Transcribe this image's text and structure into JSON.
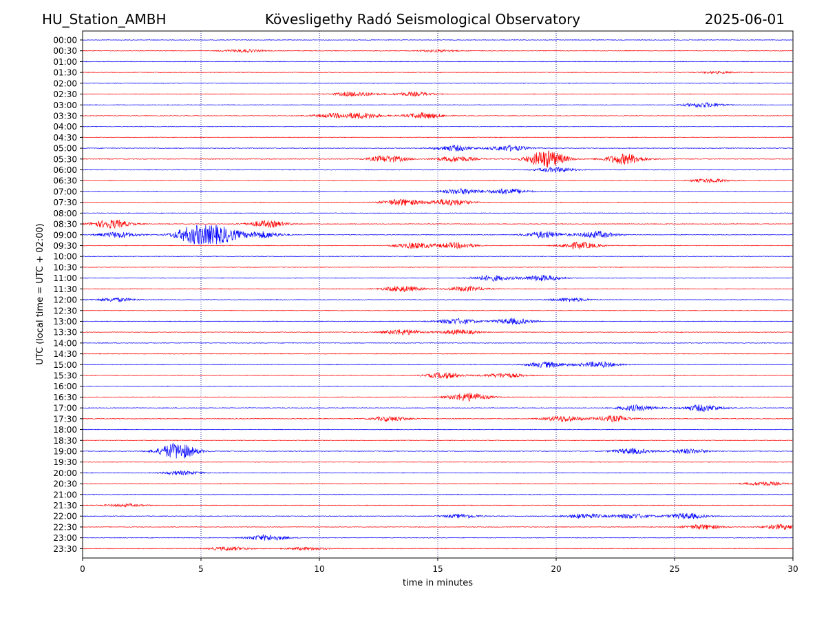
{
  "header": {
    "station": "HU_Station_AMBH",
    "observatory": "Kövesligethy Radó Seismological Observatory",
    "date": "2025-06-01"
  },
  "colors": {
    "trace_on_hour": "#0000ff",
    "trace_half_hour": "#ff0000",
    "grid": "#000080",
    "axis": "#000000",
    "background": "#ffffff"
  },
  "chart_data": {
    "type": "line",
    "title": "Kövesligethy Radó Seismological Observatory",
    "xlabel": "time in minutes",
    "ylabel": "UTC (local time = UTC + 02:00)",
    "xlim": [
      0,
      30
    ],
    "x_ticks": [
      0,
      5,
      10,
      15,
      20,
      25,
      30
    ],
    "x_tick_labels": [
      "0",
      "5",
      "10",
      "15",
      "20",
      "25",
      "30"
    ],
    "x_grid": "dotted vertical lines every 5 minutes",
    "row_labels": [
      "00:00",
      "00:30",
      "01:00",
      "01:30",
      "02:00",
      "02:30",
      "03:00",
      "03:30",
      "04:00",
      "04:30",
      "05:00",
      "05:30",
      "06:00",
      "06:30",
      "07:00",
      "07:30",
      "08:00",
      "08:30",
      "09:00",
      "09:30",
      "10:00",
      "10:30",
      "11:00",
      "11:30",
      "12:00",
      "12:30",
      "13:00",
      "13:30",
      "14:00",
      "14:30",
      "15:00",
      "15:30",
      "16:00",
      "16:30",
      "17:00",
      "17:30",
      "18:00",
      "18:30",
      "19:00",
      "19:30",
      "20:00",
      "20:30",
      "21:00",
      "21:30",
      "22:00",
      "22:30",
      "23:00",
      "23:30"
    ],
    "row_colors": "alternating: on-hour rows blue, half-hour rows red",
    "events": [
      {
        "row": "00:30",
        "minute": 6.8,
        "amp": 0.15
      },
      {
        "row": "00:30",
        "minute": 15.0,
        "amp": 0.12
      },
      {
        "row": "01:30",
        "minute": 26.8,
        "amp": 0.1
      },
      {
        "row": "02:30",
        "minute": 11.5,
        "amp": 0.25
      },
      {
        "row": "02:30",
        "minute": 14.0,
        "amp": 0.2
      },
      {
        "row": "03:00",
        "minute": 26.2,
        "amp": 0.25
      },
      {
        "row": "03:30",
        "minute": 10.5,
        "amp": 0.2
      },
      {
        "row": "03:30",
        "minute": 11.8,
        "amp": 0.3
      },
      {
        "row": "03:30",
        "minute": 14.4,
        "amp": 0.3
      },
      {
        "row": "05:00",
        "minute": 15.7,
        "amp": 0.3
      },
      {
        "row": "05:00",
        "minute": 18.0,
        "amp": 0.3
      },
      {
        "row": "05:30",
        "minute": 12.9,
        "amp": 0.35
      },
      {
        "row": "05:30",
        "minute": 15.8,
        "amp": 0.3
      },
      {
        "row": "05:30",
        "minute": 19.6,
        "amp": 0.9
      },
      {
        "row": "05:30",
        "minute": 22.9,
        "amp": 0.55
      },
      {
        "row": "06:00",
        "minute": 20.0,
        "amp": 0.25
      },
      {
        "row": "06:30",
        "minute": 26.5,
        "amp": 0.2
      },
      {
        "row": "07:00",
        "minute": 16.0,
        "amp": 0.3
      },
      {
        "row": "07:00",
        "minute": 18.0,
        "amp": 0.3
      },
      {
        "row": "07:30",
        "minute": 13.5,
        "amp": 0.35
      },
      {
        "row": "07:30",
        "minute": 15.5,
        "amp": 0.35
      },
      {
        "row": "08:30",
        "minute": 1.2,
        "amp": 0.45
      },
      {
        "row": "08:30",
        "minute": 7.8,
        "amp": 0.35
      },
      {
        "row": "09:00",
        "minute": 4.7,
        "amp": 0.9
      },
      {
        "row": "09:00",
        "minute": 5.85,
        "amp": 0.8
      },
      {
        "row": "09:00",
        "minute": 1.5,
        "amp": 0.3
      },
      {
        "row": "09:00",
        "minute": 7.6,
        "amp": 0.35
      },
      {
        "row": "09:00",
        "minute": 19.5,
        "amp": 0.35
      },
      {
        "row": "09:00",
        "minute": 21.7,
        "amp": 0.35
      },
      {
        "row": "09:30",
        "minute": 14.0,
        "amp": 0.3
      },
      {
        "row": "09:30",
        "minute": 15.8,
        "amp": 0.3
      },
      {
        "row": "09:30",
        "minute": 21.0,
        "amp": 0.35
      },
      {
        "row": "11:00",
        "minute": 17.3,
        "amp": 0.3
      },
      {
        "row": "11:00",
        "minute": 19.4,
        "amp": 0.3
      },
      {
        "row": "11:30",
        "minute": 13.5,
        "amp": 0.3
      },
      {
        "row": "11:30",
        "minute": 16.2,
        "amp": 0.25
      },
      {
        "row": "12:00",
        "minute": 1.4,
        "amp": 0.2
      },
      {
        "row": "12:00",
        "minute": 20.6,
        "amp": 0.2
      },
      {
        "row": "13:00",
        "minute": 15.8,
        "amp": 0.3
      },
      {
        "row": "13:00",
        "minute": 18.2,
        "amp": 0.3
      },
      {
        "row": "13:30",
        "minute": 13.5,
        "amp": 0.3
      },
      {
        "row": "13:30",
        "minute": 15.9,
        "amp": 0.25
      },
      {
        "row": "15:00",
        "minute": 19.6,
        "amp": 0.3
      },
      {
        "row": "15:00",
        "minute": 21.8,
        "amp": 0.3
      },
      {
        "row": "15:30",
        "minute": 15.3,
        "amp": 0.3
      },
      {
        "row": "15:30",
        "minute": 17.8,
        "amp": 0.25
      },
      {
        "row": "16:30",
        "minute": 16.3,
        "amp": 0.45
      },
      {
        "row": "17:00",
        "minute": 23.4,
        "amp": 0.3
      },
      {
        "row": "17:00",
        "minute": 26.2,
        "amp": 0.35
      },
      {
        "row": "17:30",
        "minute": 13.0,
        "amp": 0.25
      },
      {
        "row": "17:30",
        "minute": 20.3,
        "amp": 0.3
      },
      {
        "row": "17:30",
        "minute": 22.4,
        "amp": 0.3
      },
      {
        "row": "19:00",
        "minute": 4.0,
        "amp": 0.85
      },
      {
        "row": "19:00",
        "minute": 23.2,
        "amp": 0.3
      },
      {
        "row": "19:00",
        "minute": 25.6,
        "amp": 0.25
      },
      {
        "row": "20:00",
        "minute": 4.2,
        "amp": 0.2
      },
      {
        "row": "20:30",
        "minute": 28.8,
        "amp": 0.2
      },
      {
        "row": "21:30",
        "minute": 1.8,
        "amp": 0.15
      },
      {
        "row": "22:00",
        "minute": 16.0,
        "amp": 0.2
      },
      {
        "row": "22:00",
        "minute": 21.2,
        "amp": 0.25
      },
      {
        "row": "22:00",
        "minute": 23.2,
        "amp": 0.25
      },
      {
        "row": "22:00",
        "minute": 25.5,
        "amp": 0.3
      },
      {
        "row": "22:30",
        "minute": 26.2,
        "amp": 0.25
      },
      {
        "row": "22:30",
        "minute": 29.5,
        "amp": 0.25
      },
      {
        "row": "23:00",
        "minute": 7.8,
        "amp": 0.3
      },
      {
        "row": "23:30",
        "minute": 6.2,
        "amp": 0.2
      },
      {
        "row": "23:30",
        "minute": 9.5,
        "amp": 0.15
      }
    ]
  }
}
